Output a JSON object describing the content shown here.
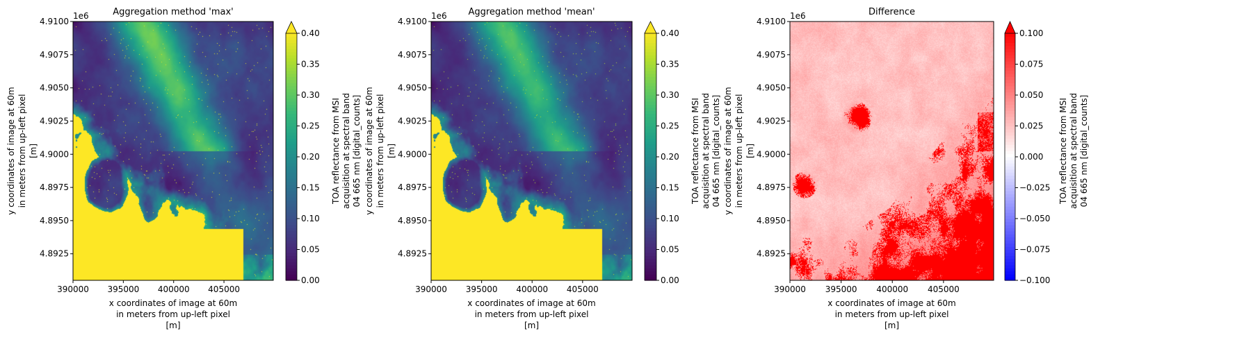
{
  "chart_data": [
    {
      "type": "heatmap",
      "title": "Aggregation method 'max'",
      "xlabel": [
        "x coordinates of image at 60m",
        "in meters from up-left pixel",
        "[m]"
      ],
      "ylabel": [
        "y coordinates of image at 60m",
        "in meters from up-left pixel",
        "[m]"
      ],
      "y_offset_label": "1e6",
      "xlim": [
        390000,
        409900
      ],
      "ylim": [
        4.8905,
        4.91
      ],
      "xticks": [
        "390000",
        "395000",
        "400000",
        "405000"
      ],
      "xtick_values": [
        390000,
        395000,
        400000,
        405000
      ],
      "yticks": [
        "4.9100",
        "4.9075",
        "4.9050",
        "4.9025",
        "4.9000",
        "4.8975",
        "4.8950",
        "4.8925"
      ],
      "ytick_values": [
        4.91,
        4.9075,
        4.905,
        4.9025,
        4.9,
        4.8975,
        4.895,
        4.8925
      ],
      "colormap": "viridis",
      "clim": [
        0.0,
        0.4
      ],
      "extend": "max",
      "colorbar_label": [
        "TOA reflectance from MSI",
        "acquisition at spectral band",
        "04 665 nm [digital_counts]"
      ],
      "colorbar_ticks": [
        "0.00",
        "0.05",
        "0.10",
        "0.15",
        "0.20",
        "0.25",
        "0.30",
        "0.35",
        "0.40"
      ],
      "colorbar_tick_values": [
        0,
        0.05,
        0.1,
        0.15,
        0.2,
        0.25,
        0.3,
        0.35,
        0.4
      ]
    },
    {
      "type": "heatmap",
      "title": "Aggregation method 'mean'",
      "xlabel": [
        "x coordinates of image at 60m",
        "in meters from up-left pixel",
        "[m]"
      ],
      "ylabel": [
        "y coordinates of image at 60m",
        "in meters from up-left pixel",
        "[m]"
      ],
      "y_offset_label": "1e6",
      "xlim": [
        390000,
        409900
      ],
      "ylim": [
        4.8905,
        4.91
      ],
      "xticks": [
        "390000",
        "395000",
        "400000",
        "405000"
      ],
      "xtick_values": [
        390000,
        395000,
        400000,
        405000
      ],
      "yticks": [
        "4.9100",
        "4.9075",
        "4.9050",
        "4.9025",
        "4.9000",
        "4.8975",
        "4.8950",
        "4.8925"
      ],
      "ytick_values": [
        4.91,
        4.9075,
        4.905,
        4.9025,
        4.9,
        4.8975,
        4.895,
        4.8925
      ],
      "colormap": "viridis",
      "clim": [
        0.0,
        0.4
      ],
      "extend": "max",
      "colorbar_label": [
        "TOA reflectance from MSI",
        "acquisition at spectral band",
        "04 665 nm [digital_counts]"
      ],
      "colorbar_ticks": [
        "0.00",
        "0.05",
        "0.10",
        "0.15",
        "0.20",
        "0.25",
        "0.30",
        "0.35",
        "0.40"
      ],
      "colorbar_tick_values": [
        0,
        0.05,
        0.1,
        0.15,
        0.2,
        0.25,
        0.3,
        0.35,
        0.4
      ]
    },
    {
      "type": "heatmap",
      "title": "Difference",
      "xlabel": [
        "x coordinates of image at 60m",
        "in meters from up-left pixel",
        "[m]"
      ],
      "ylabel": [
        "y coordinates of image at 60m",
        "in meters from up-left pixel",
        "[m]"
      ],
      "y_offset_label": "1e6",
      "xlim": [
        390000,
        409900
      ],
      "ylim": [
        4.8905,
        4.91
      ],
      "xticks": [
        "390000",
        "395000",
        "400000",
        "405000"
      ],
      "xtick_values": [
        390000,
        395000,
        400000,
        405000
      ],
      "yticks": [
        "4.9100",
        "4.9075",
        "4.9050",
        "4.9025",
        "4.9000",
        "4.8975",
        "4.8950",
        "4.8925"
      ],
      "ytick_values": [
        4.91,
        4.9075,
        4.905,
        4.9025,
        4.9,
        4.8975,
        4.895,
        4.8925
      ],
      "colormap": "bwr",
      "clim": [
        -0.1,
        0.1
      ],
      "extend": "max",
      "colorbar_label": [
        "TOA reflectance from MSI",
        "acquisition at spectral band",
        "04 665 nm [digital_counts]"
      ],
      "colorbar_ticks": [
        "−0.100",
        "−0.075",
        "−0.050",
        "−0.025",
        "0.000",
        "0.025",
        "0.050",
        "0.075",
        "0.100"
      ],
      "colorbar_tick_values": [
        -0.1,
        -0.075,
        -0.05,
        -0.025,
        0,
        0.025,
        0.05,
        0.075,
        0.1
      ]
    }
  ]
}
